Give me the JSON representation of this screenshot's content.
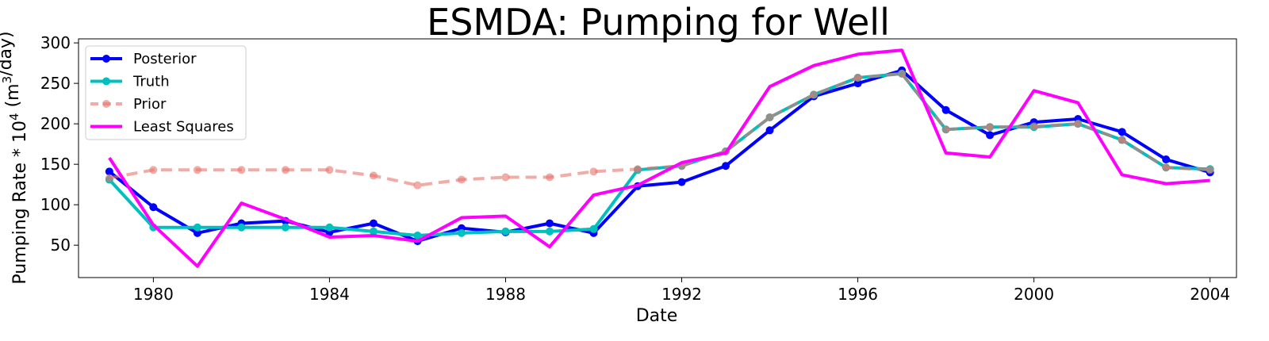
{
  "chart_data": {
    "type": "line",
    "title": "ESMDA: Pumping for Well",
    "xlabel": "Date",
    "ylabel": "Pumping Rate * 10⁴ (m³/day)",
    "x": [
      1979,
      1980,
      1981,
      1982,
      1983,
      1984,
      1985,
      1986,
      1987,
      1988,
      1989,
      1990,
      1991,
      1992,
      1993,
      1994,
      1995,
      1996,
      1997,
      1998,
      1999,
      2000,
      2001,
      2002,
      2003,
      2004
    ],
    "xlim": [
      1978.3,
      2004.6
    ],
    "ylim": [
      10,
      305
    ],
    "xticks": [
      1980,
      1984,
      1988,
      1992,
      1996,
      2000,
      2004
    ],
    "yticks": [
      50,
      100,
      150,
      200,
      250,
      300
    ],
    "grid": false,
    "legend_position": "upper left",
    "series": [
      {
        "name": "Posterior",
        "color": "#0000ff",
        "style": "solid-marker",
        "values": [
          141,
          97,
          65,
          77,
          80,
          66,
          77,
          55,
          71,
          66,
          77,
          65,
          123,
          128,
          148,
          192,
          234,
          250,
          266,
          217,
          186,
          202,
          206,
          190,
          156,
          140
        ]
      },
      {
        "name": "Truth",
        "color": "#00bfbf",
        "style": "solid-marker",
        "values": [
          131,
          72,
          72,
          72,
          72,
          72,
          67,
          62,
          65,
          67,
          67,
          70,
          143,
          148,
          166,
          208,
          236,
          257,
          262,
          193,
          196,
          196,
          200,
          180,
          146,
          144
        ]
      },
      {
        "name": "Prior",
        "color": "#e8746e",
        "style": "dashed-marker",
        "values": [
          133,
          143,
          143,
          143,
          143,
          143,
          136,
          124,
          131,
          134,
          134,
          141,
          144,
          148,
          166,
          208,
          236,
          257,
          262,
          193,
          196,
          197,
          200,
          180,
          146,
          143
        ]
      },
      {
        "name": "Least Squares",
        "color": "#ff00ff",
        "style": "solid",
        "values": [
          158,
          75,
          24,
          102,
          82,
          60,
          62,
          55,
          84,
          86,
          48,
          112,
          124,
          152,
          164,
          246,
          272,
          286,
          291,
          164,
          159,
          241,
          226,
          137,
          126,
          130
        ]
      }
    ]
  }
}
